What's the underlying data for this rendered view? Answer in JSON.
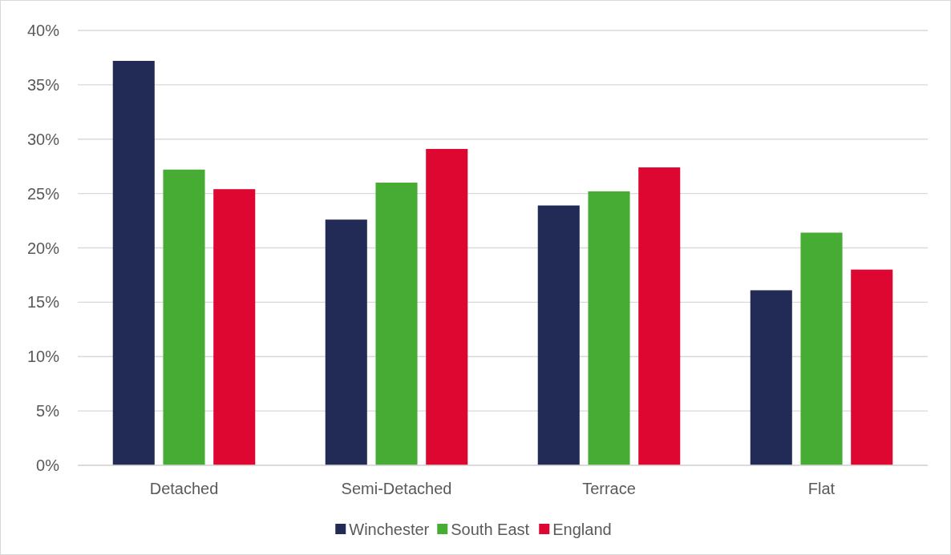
{
  "chart_data": {
    "type": "bar",
    "categories": [
      "Detached",
      "Semi-Detached",
      "Terrace",
      "Flat"
    ],
    "series": [
      {
        "name": "Winchester",
        "color": "#222b55",
        "values": [
          37.2,
          22.6,
          23.9,
          16.1
        ]
      },
      {
        "name": "South East",
        "color": "#46ac34",
        "values": [
          27.2,
          26.0,
          25.2,
          21.4
        ]
      },
      {
        "name": "England",
        "color": "#dd0732",
        "values": [
          25.4,
          29.1,
          27.4,
          18.0
        ]
      }
    ],
    "ylim": [
      0,
      40
    ],
    "yticks": [
      {
        "value": 0,
        "label": "0%"
      },
      {
        "value": 5,
        "label": "5%"
      },
      {
        "value": 10,
        "label": "10%"
      },
      {
        "value": 15,
        "label": "15%"
      },
      {
        "value": 20,
        "label": "20%"
      },
      {
        "value": 25,
        "label": "25%"
      },
      {
        "value": 30,
        "label": "30%"
      },
      {
        "value": 35,
        "label": "35%"
      },
      {
        "value": 40,
        "label": "40%"
      }
    ],
    "grid": "y",
    "legend": "bottom"
  }
}
